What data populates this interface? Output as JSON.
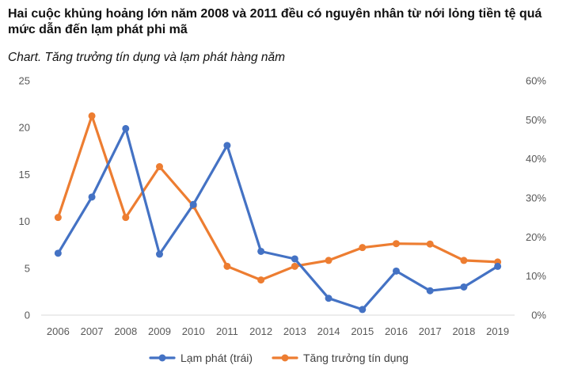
{
  "title": "Hai cuộc khủng hoảng lớn năm 2008 và 2011 đều có nguyên nhân từ nới lỏng tiền tệ quá mức dẫn đến lạm phát phi mã",
  "subtitle": "Chart. Tăng trưởng tín dụng và lạm phát hàng năm",
  "colors": {
    "inflation": "#4472C4",
    "credit": "#ED7D31"
  },
  "chart_data": {
    "type": "line",
    "categories": [
      "2006",
      "2007",
      "2008",
      "2009",
      "2010",
      "2011",
      "2012",
      "2013",
      "2014",
      "2015",
      "2016",
      "2017",
      "2018",
      "2019"
    ],
    "series": [
      {
        "name": "Lạm phát (trái)",
        "axis": "left",
        "color": "#4472C4",
        "values": [
          6.6,
          12.6,
          19.9,
          6.5,
          11.8,
          18.1,
          6.8,
          6.0,
          1.8,
          0.6,
          4.7,
          2.6,
          3.0,
          5.2
        ]
      },
      {
        "name": "Tăng trưởng tín dụng",
        "axis": "right",
        "color": "#ED7D31",
        "values": [
          25,
          51,
          25,
          38,
          28,
          12.5,
          9,
          12.5,
          14,
          17.3,
          18.3,
          18.2,
          14,
          13.6
        ]
      }
    ],
    "y_left": {
      "min": 0,
      "max": 25,
      "ticks": [
        "0",
        "5",
        "10",
        "15",
        "20",
        "25"
      ],
      "tick_values": [
        0,
        5,
        10,
        15,
        20,
        25
      ]
    },
    "y_right": {
      "min": 0,
      "max": 60,
      "ticks": [
        "0%",
        "10%",
        "20%",
        "30%",
        "40%",
        "50%",
        "60%"
      ],
      "tick_values": [
        0,
        10,
        20,
        30,
        40,
        50,
        60
      ]
    },
    "grid": false,
    "legend_position": "bottom"
  }
}
